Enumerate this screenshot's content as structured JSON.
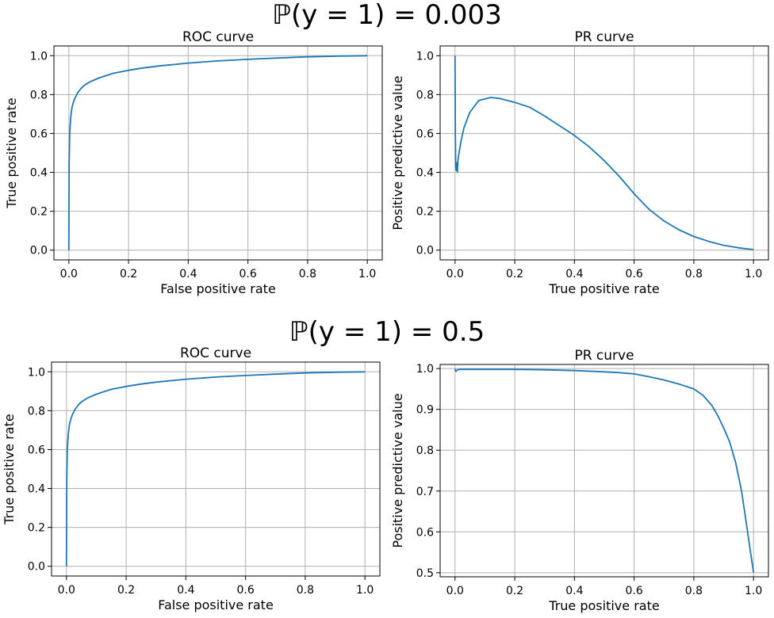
{
  "figure": {
    "groups": [
      {
        "suptitle": "ℙ(y = 1) = 0.003"
      },
      {
        "suptitle": "ℙ(y = 1) = 0.5"
      }
    ]
  },
  "colors": {
    "line": "#1f77b4",
    "grid": "#b0b0b0",
    "axes": "#000000"
  },
  "chart_data": [
    {
      "type": "line",
      "title": "ROC curve",
      "xlabel": "False positive rate",
      "ylabel": "True positive rate",
      "xlim": [
        -0.05,
        1.05
      ],
      "ylim": [
        -0.05,
        1.05
      ],
      "xticks": [
        "0.0",
        "0.2",
        "0.4",
        "0.6",
        "0.8",
        "1.0"
      ],
      "yticks": [
        "0.0",
        "0.2",
        "0.4",
        "0.6",
        "0.8",
        "1.0"
      ],
      "grid": true,
      "series": [
        {
          "x": [
            0,
            0.001,
            0.003,
            0.006,
            0.01,
            0.015,
            0.02,
            0.03,
            0.04,
            0.05,
            0.07,
            0.1,
            0.15,
            0.2,
            0.25,
            0.3,
            0.4,
            0.5,
            0.6,
            0.7,
            0.8,
            0.9,
            1.0
          ],
          "y": [
            0,
            0.45,
            0.6,
            0.68,
            0.73,
            0.76,
            0.78,
            0.81,
            0.83,
            0.845,
            0.865,
            0.885,
            0.91,
            0.925,
            0.937,
            0.947,
            0.962,
            0.973,
            0.981,
            0.988,
            0.994,
            0.998,
            1.0
          ]
        }
      ]
    },
    {
      "type": "line",
      "title": "PR curve",
      "xlabel": "True positive rate",
      "ylabel": "Positive predictive value",
      "xlim": [
        -0.05,
        1.05
      ],
      "ylim": [
        -0.05,
        1.05
      ],
      "xticks": [
        "0.0",
        "0.2",
        "0.4",
        "0.6",
        "0.8",
        "1.0"
      ],
      "yticks": [
        "0.0",
        "0.2",
        "0.4",
        "0.6",
        "0.8",
        "1.0"
      ],
      "grid": true,
      "series": [
        {
          "x": [
            0,
            0.001,
            0.002,
            0.004,
            0.006,
            0.008,
            0.01,
            0.02,
            0.03,
            0.05,
            0.08,
            0.12,
            0.15,
            0.2,
            0.25,
            0.3,
            0.35,
            0.4,
            0.45,
            0.5,
            0.55,
            0.6,
            0.65,
            0.7,
            0.75,
            0.8,
            0.85,
            0.9,
            0.95,
            1.0
          ],
          "y": [
            1.0,
            0.6,
            0.43,
            0.41,
            0.45,
            0.4,
            0.47,
            0.56,
            0.63,
            0.71,
            0.77,
            0.785,
            0.78,
            0.76,
            0.735,
            0.69,
            0.64,
            0.59,
            0.53,
            0.46,
            0.38,
            0.29,
            0.21,
            0.15,
            0.105,
            0.07,
            0.045,
            0.025,
            0.012,
            0.003
          ]
        }
      ]
    },
    {
      "type": "line",
      "title": "ROC curve",
      "xlabel": "False positive rate",
      "ylabel": "True positive rate",
      "xlim": [
        -0.05,
        1.05
      ],
      "ylim": [
        -0.05,
        1.05
      ],
      "xticks": [
        "0.0",
        "0.2",
        "0.4",
        "0.6",
        "0.8",
        "1.0"
      ],
      "yticks": [
        "0.0",
        "0.2",
        "0.4",
        "0.6",
        "0.8",
        "1.0"
      ],
      "grid": true,
      "series": [
        {
          "x": [
            0,
            0.001,
            0.003,
            0.006,
            0.01,
            0.015,
            0.02,
            0.03,
            0.04,
            0.05,
            0.07,
            0.1,
            0.15,
            0.2,
            0.25,
            0.3,
            0.4,
            0.5,
            0.6,
            0.7,
            0.8,
            0.9,
            1.0
          ],
          "y": [
            0,
            0.45,
            0.6,
            0.68,
            0.73,
            0.76,
            0.78,
            0.81,
            0.83,
            0.845,
            0.865,
            0.885,
            0.91,
            0.925,
            0.937,
            0.947,
            0.962,
            0.973,
            0.981,
            0.988,
            0.994,
            0.998,
            1.0
          ]
        }
      ]
    },
    {
      "type": "line",
      "title": "PR curve",
      "xlabel": "True positive rate",
      "ylabel": "Positive predictive value",
      "xlim": [
        -0.05,
        1.05
      ],
      "ylim": [
        0.49,
        1.01
      ],
      "xticks": [
        "0.0",
        "0.2",
        "0.4",
        "0.6",
        "0.8",
        "1.0"
      ],
      "yticks": [
        "0.5",
        "0.6",
        "0.7",
        "0.8",
        "0.9",
        "1.0"
      ],
      "grid": true,
      "series": [
        {
          "x": [
            0,
            0.003,
            0.008,
            0.015,
            0.03,
            0.1,
            0.2,
            0.3,
            0.4,
            0.5,
            0.55,
            0.6,
            0.65,
            0.7,
            0.75,
            0.8,
            0.83,
            0.86,
            0.88,
            0.9,
            0.92,
            0.94,
            0.96,
            0.97,
            0.98,
            0.99,
            1.0
          ],
          "y": [
            0.999,
            0.993,
            0.997,
            0.998,
            0.998,
            0.998,
            0.998,
            0.997,
            0.995,
            0.992,
            0.99,
            0.987,
            0.98,
            0.972,
            0.962,
            0.95,
            0.935,
            0.91,
            0.885,
            0.855,
            0.82,
            0.77,
            0.7,
            0.65,
            0.6,
            0.55,
            0.5
          ]
        }
      ]
    }
  ]
}
